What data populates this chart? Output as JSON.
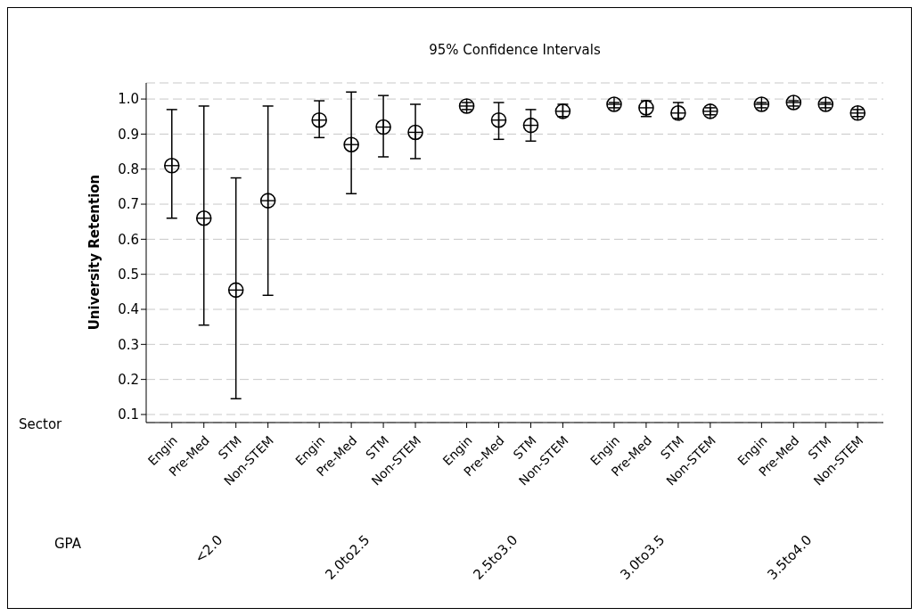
{
  "chart_data": {
    "type": "scatter",
    "title": "95% Confidence Intervals",
    "ylabel": "University Retention",
    "categories": [
      "Engin",
      "Pre-Med",
      "STM",
      "Non-STEM",
      "Engin",
      "Pre-Med",
      "STM",
      "Non-STEM",
      "Engin",
      "Pre-Med",
      "STM",
      "Non-STEM",
      "Engin",
      "Pre-Med",
      "STM",
      "Non-STEM",
      "Engin",
      "Pre-Med",
      "STM",
      "Non-STEM"
    ],
    "annotations": [
      "Sector",
      "GPA",
      "<2.0",
      "2.0to2.5",
      "2.5to3.0",
      "3.0to3.5",
      "3.5to4.0"
    ],
    "series": [
      {
        "color": "#000000",
        "values": [
          0.81,
          0.66,
          0.455,
          0.71,
          0.94,
          0.87,
          0.92,
          0.905,
          0.98,
          0.94,
          0.925,
          0.965,
          0.985,
          0.975,
          0.96,
          0.965,
          0.985,
          0.99,
          0.985,
          0.96
        ],
        "errors": [
          [
            0.66,
            0.97
          ],
          [
            0.355,
            0.98
          ],
          [
            0.145,
            0.775
          ],
          [
            0.44,
            0.98
          ],
          [
            0.89,
            0.995
          ],
          [
            0.73,
            1.02
          ],
          [
            0.835,
            1.01
          ],
          [
            0.83,
            0.985
          ],
          [
            0.97,
            0.99
          ],
          [
            0.885,
            0.99
          ],
          [
            0.88,
            0.97
          ],
          [
            0.95,
            0.985
          ],
          [
            0.975,
            0.99
          ],
          [
            0.95,
            0.995
          ],
          [
            0.945,
            0.99
          ],
          [
            0.955,
            0.975
          ],
          [
            0.975,
            0.99
          ],
          [
            0.98,
            0.995
          ],
          [
            0.975,
            0.99
          ],
          [
            0.95,
            0.97
          ]
        ]
      }
    ],
    "ylim": [
      0.077,
      1.046
    ],
    "yticks": [
      0.1,
      0.2,
      0.3,
      0.4,
      0.5,
      0.6,
      0.7,
      0.8,
      0.9,
      {
        "value": 1.0,
        "label": "1.0"
      }
    ],
    "grid": "y",
    "legend": false,
    "marker": "circle"
  }
}
